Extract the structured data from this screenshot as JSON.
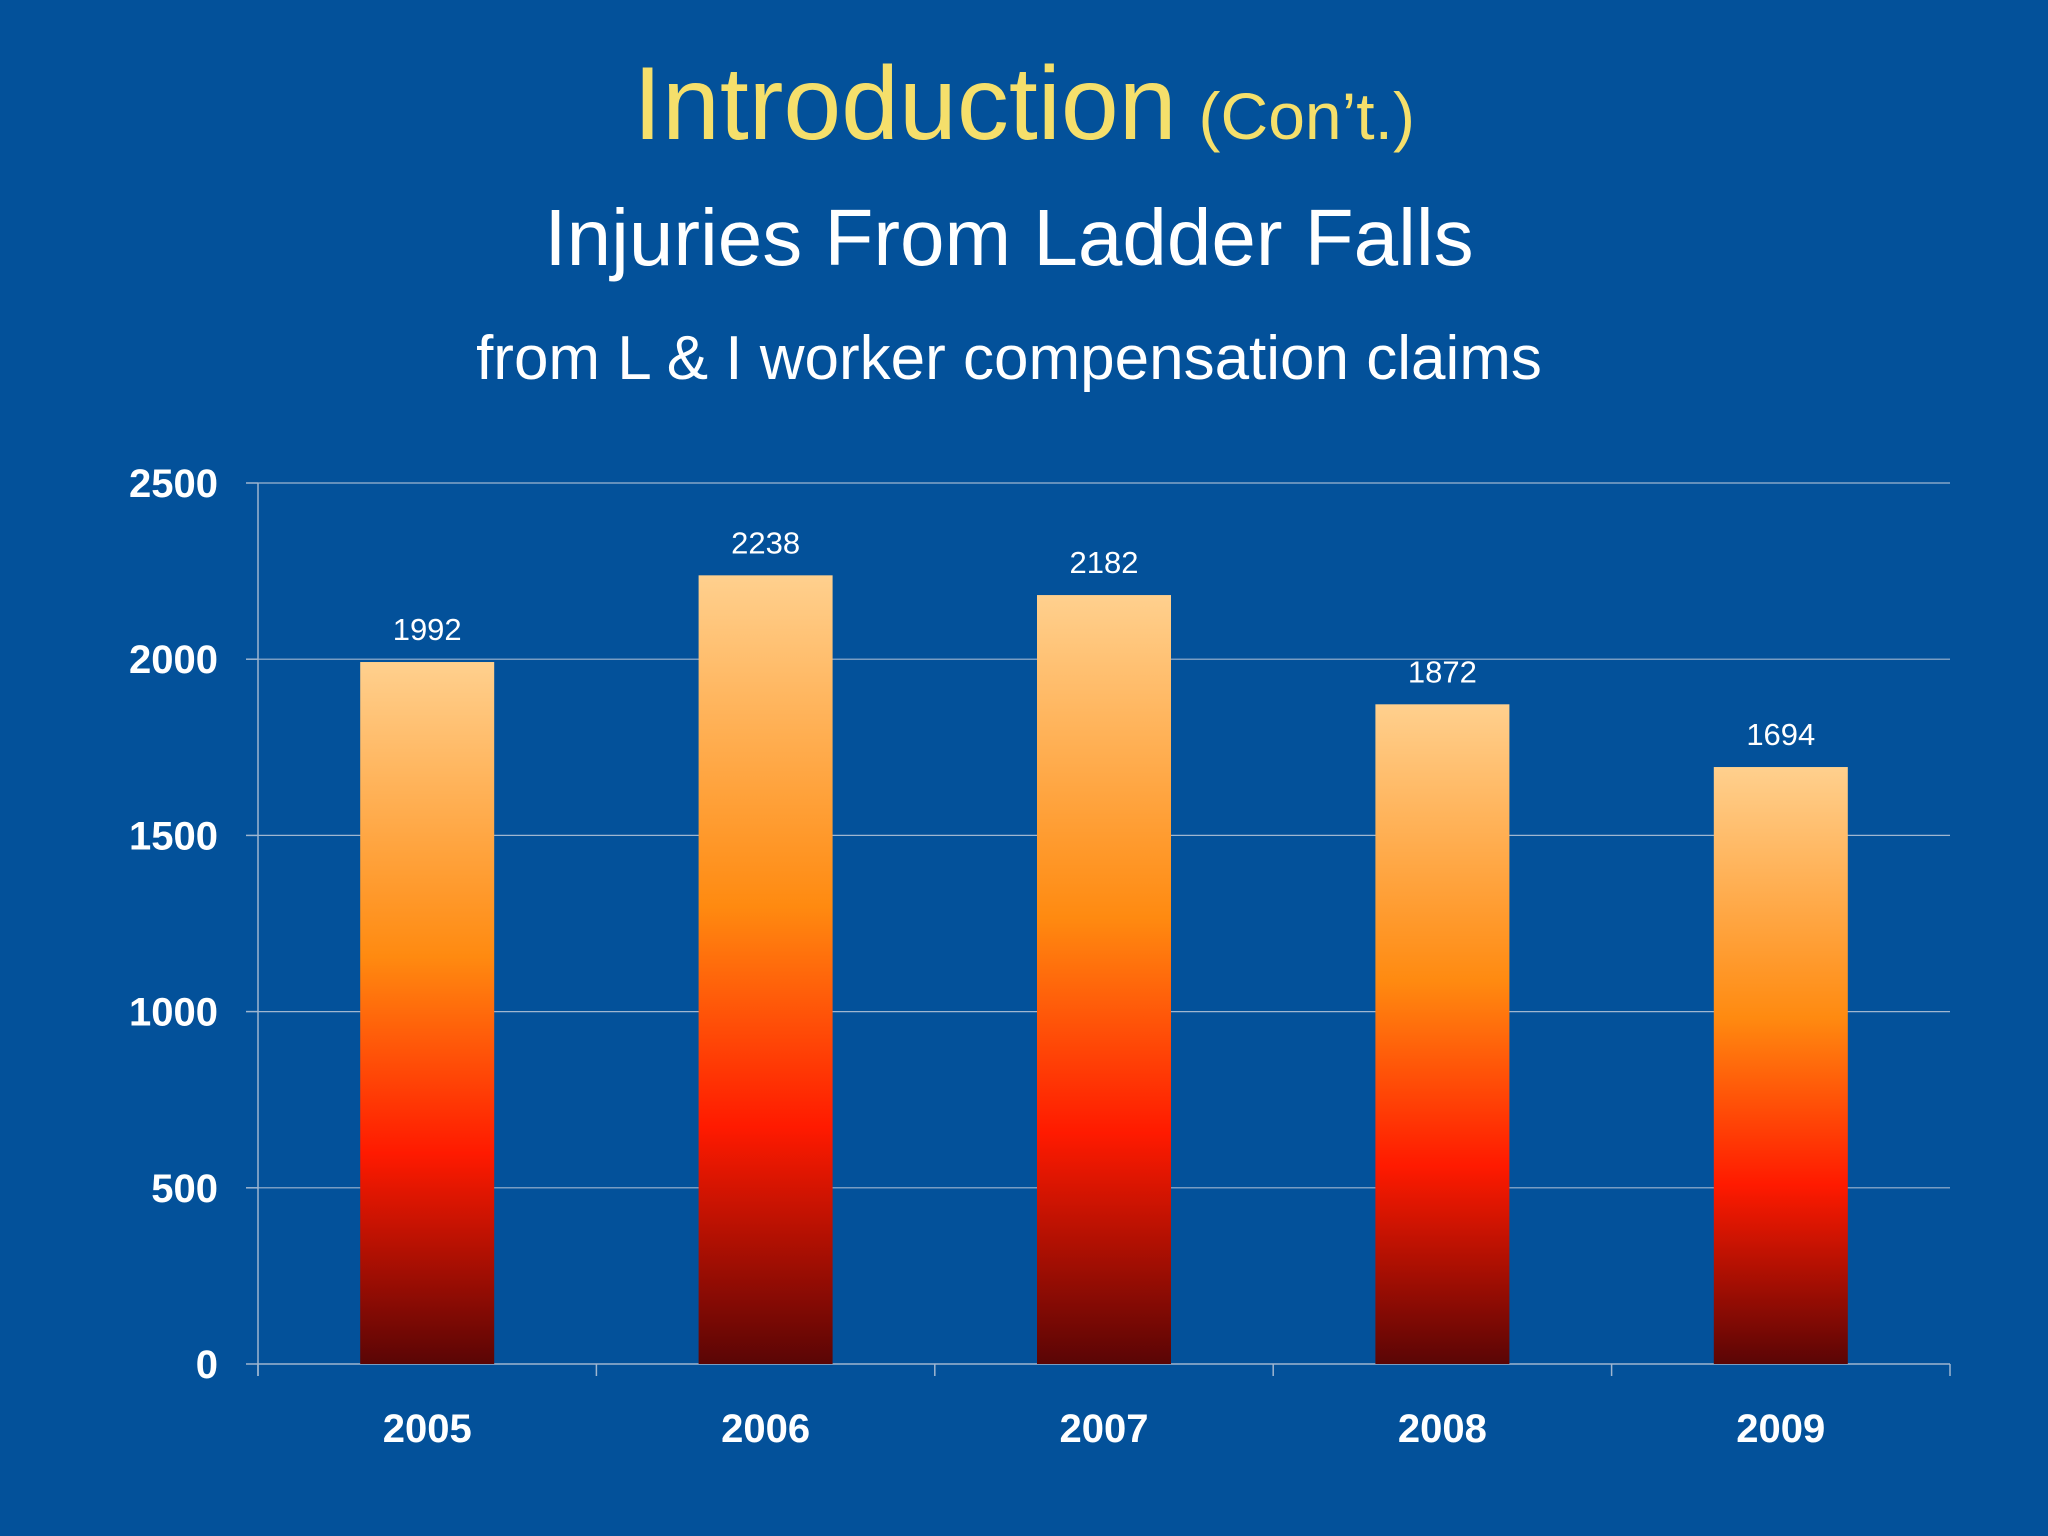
{
  "slide": {
    "heading": "Introduction",
    "heading_suffix": "(Con’t.)",
    "colors": {
      "background": "#03519a",
      "heading": "#f5df6b",
      "text": "#ffffff",
      "gridline": "#9fb6d0"
    }
  },
  "chart_data": {
    "type": "bar",
    "title": "Injuries From Ladder Falls",
    "subtitle": "from L & I worker compensation claims",
    "categories": [
      "2005",
      "2006",
      "2007",
      "2008",
      "2009"
    ],
    "values": [
      1992,
      2238,
      2182,
      1872,
      1694
    ],
    "data_labels": [
      "1992",
      "2238",
      "2182",
      "1872",
      "1694"
    ],
    "ylim": [
      0,
      2500
    ],
    "yticks": [
      0,
      500,
      1000,
      1500,
      2000,
      2500
    ],
    "xlabel": "",
    "ylabel": "",
    "grid": true,
    "legend": "none",
    "bar_gradient": [
      "#ffd08e",
      "#ff8a10",
      "#ff1a00",
      "#5a0505"
    ]
  }
}
